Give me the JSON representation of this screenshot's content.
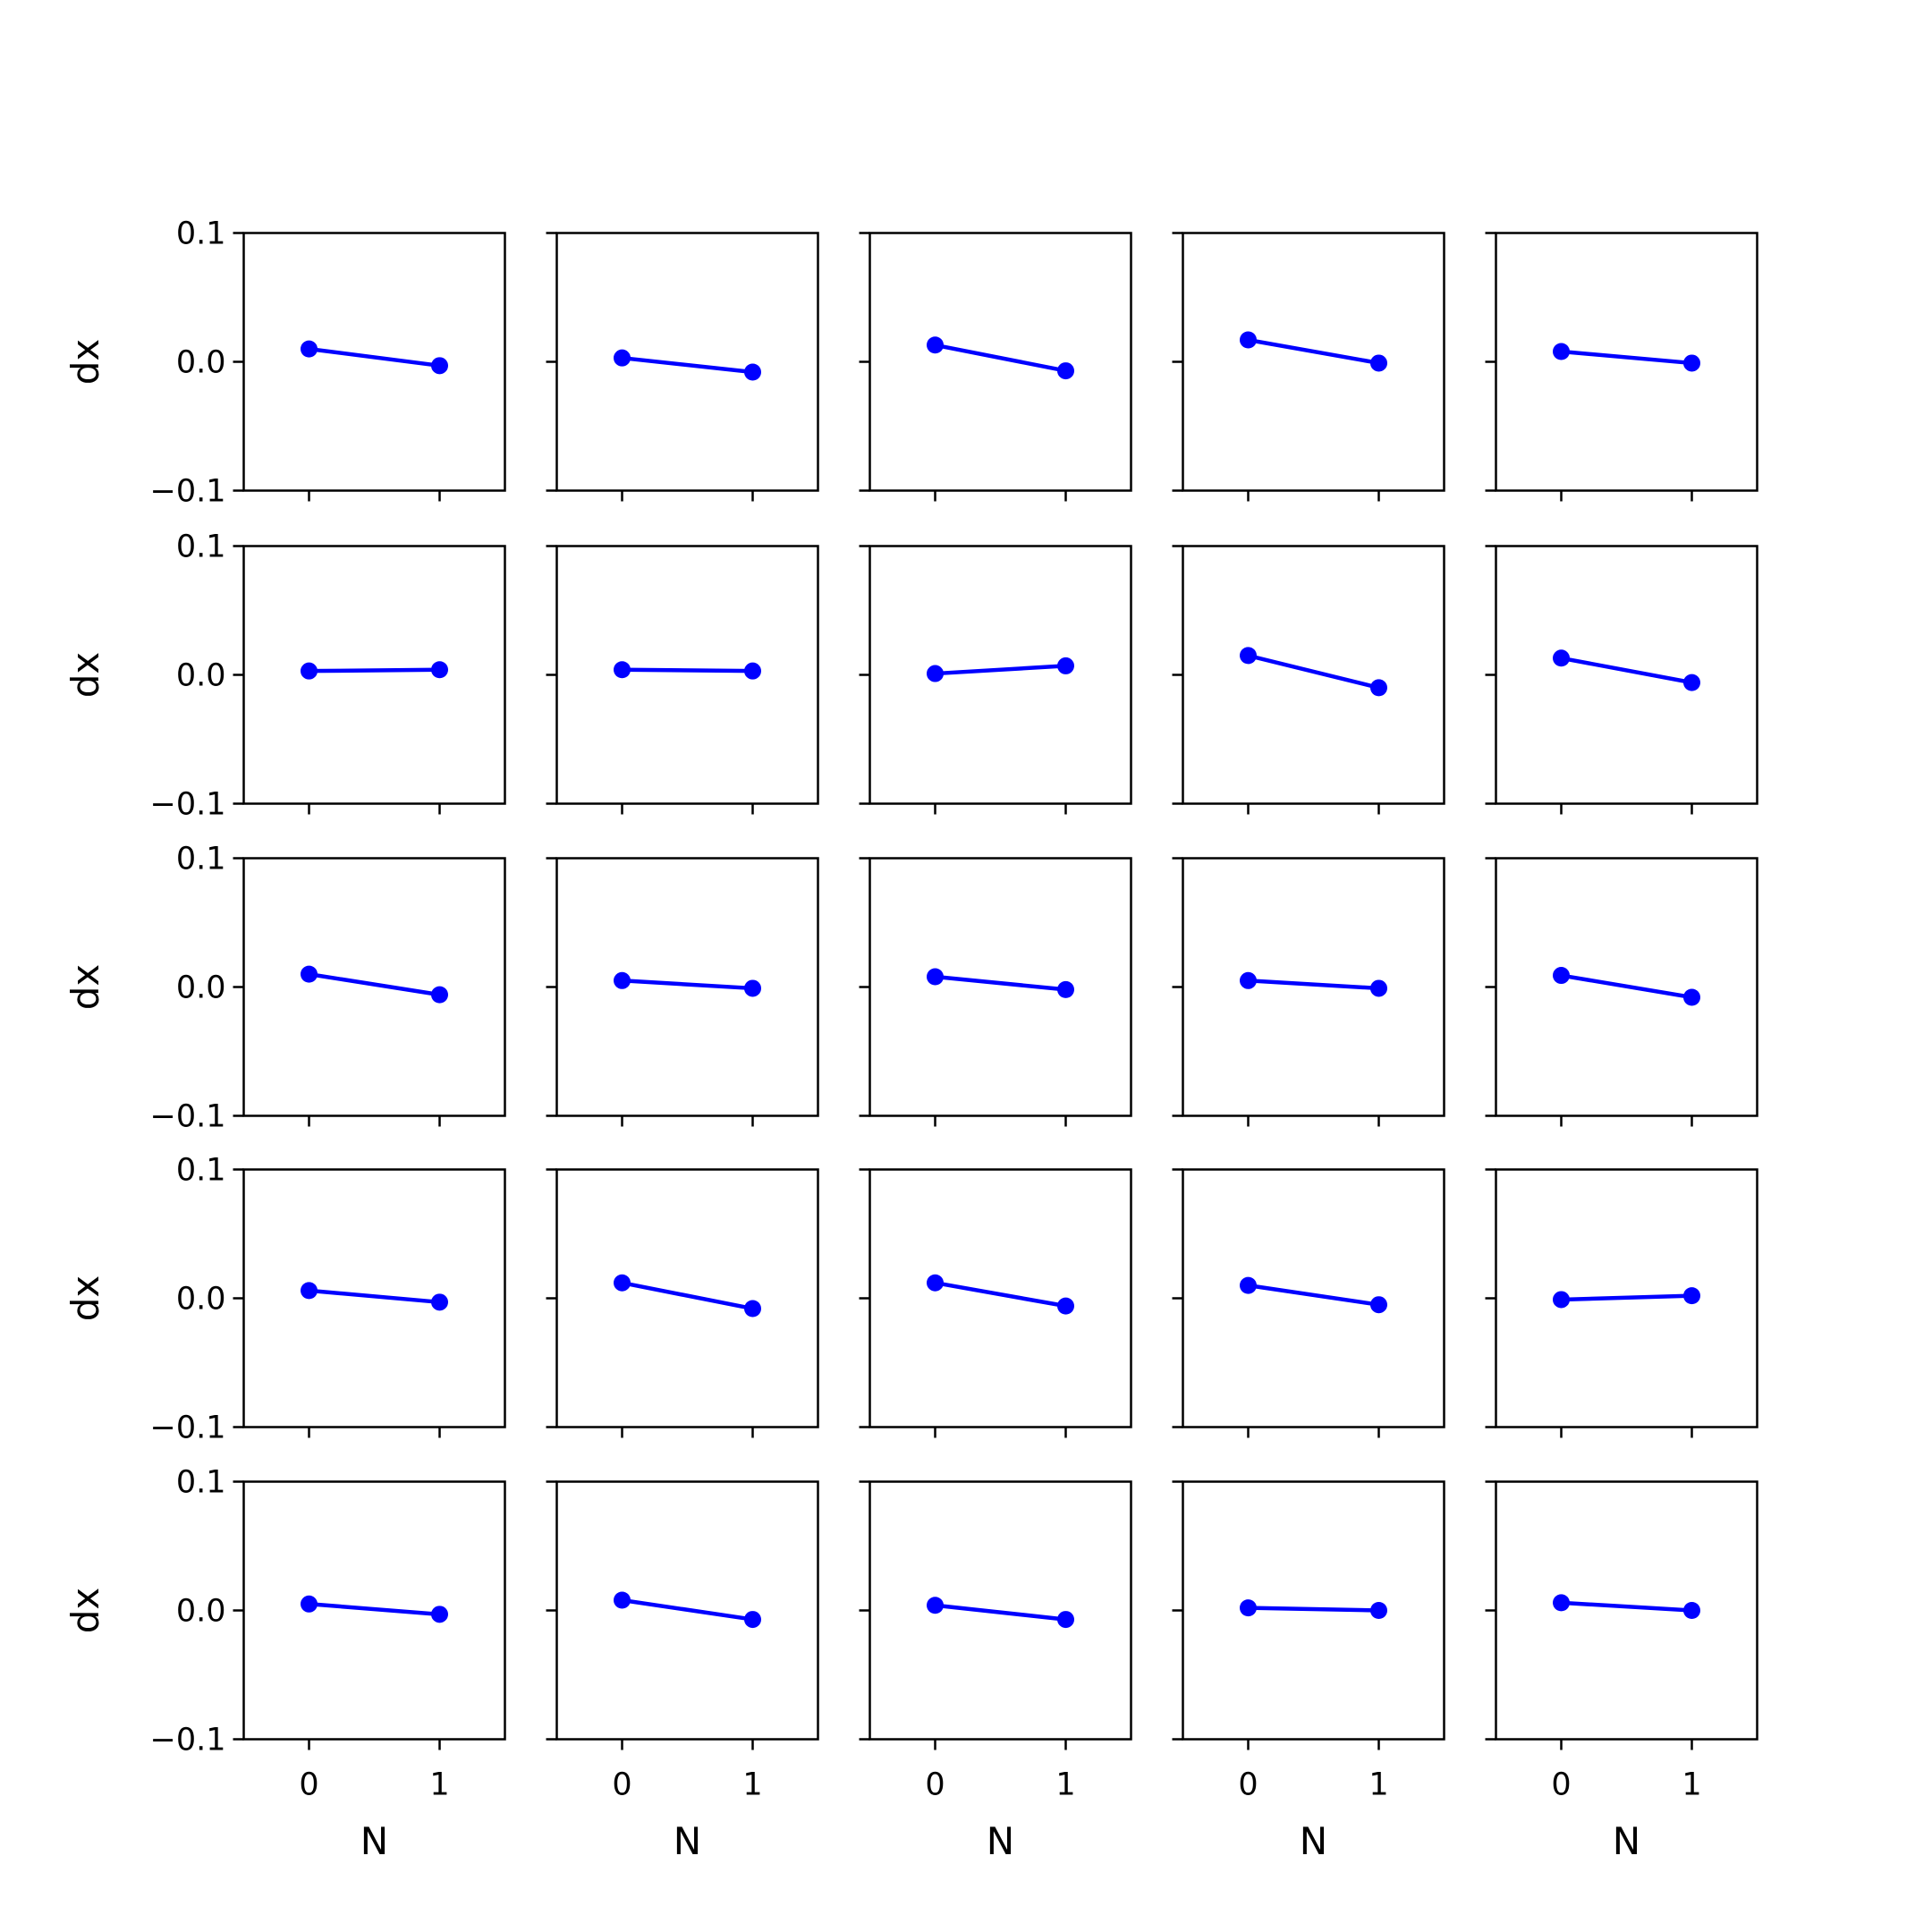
{
  "chart_data": {
    "type": "line",
    "layout": "5x5 grid of subplots",
    "xlabel": "N",
    "ylabel": "dx",
    "xticks": [
      0,
      1
    ],
    "xtick_labels": [
      "0",
      "1"
    ],
    "xlim": [
      -0.5,
      1.5
    ],
    "yticks": [
      -0.1,
      0.0,
      0.1
    ],
    "ytick_labels": [
      "−0.1",
      "0.0",
      "0.1"
    ],
    "ylim": [
      -0.1,
      0.1
    ],
    "grid": false,
    "color": "#0000ff",
    "marker": "circle",
    "x": [
      0,
      1
    ],
    "subplots": [
      {
        "row": 0,
        "col": 0,
        "y": [
          0.01,
          -0.003
        ]
      },
      {
        "row": 0,
        "col": 1,
        "y": [
          0.003,
          -0.008
        ]
      },
      {
        "row": 0,
        "col": 2,
        "y": [
          0.013,
          -0.007
        ]
      },
      {
        "row": 0,
        "col": 3,
        "y": [
          0.017,
          -0.001
        ]
      },
      {
        "row": 0,
        "col": 4,
        "y": [
          0.008,
          -0.001
        ]
      },
      {
        "row": 1,
        "col": 0,
        "y": [
          0.003,
          0.004
        ]
      },
      {
        "row": 1,
        "col": 1,
        "y": [
          0.004,
          0.003
        ]
      },
      {
        "row": 1,
        "col": 2,
        "y": [
          0.001,
          0.007
        ]
      },
      {
        "row": 1,
        "col": 3,
        "y": [
          0.015,
          -0.01
        ]
      },
      {
        "row": 1,
        "col": 4,
        "y": [
          0.013,
          -0.006
        ]
      },
      {
        "row": 2,
        "col": 0,
        "y": [
          0.01,
          -0.006
        ]
      },
      {
        "row": 2,
        "col": 1,
        "y": [
          0.005,
          -0.001
        ]
      },
      {
        "row": 2,
        "col": 2,
        "y": [
          0.008,
          -0.002
        ]
      },
      {
        "row": 2,
        "col": 3,
        "y": [
          0.005,
          -0.001
        ]
      },
      {
        "row": 2,
        "col": 4,
        "y": [
          0.009,
          -0.008
        ]
      },
      {
        "row": 3,
        "col": 0,
        "y": [
          0.006,
          -0.003
        ]
      },
      {
        "row": 3,
        "col": 1,
        "y": [
          0.012,
          -0.008
        ]
      },
      {
        "row": 3,
        "col": 2,
        "y": [
          0.012,
          -0.006
        ]
      },
      {
        "row": 3,
        "col": 3,
        "y": [
          0.01,
          -0.005
        ]
      },
      {
        "row": 3,
        "col": 4,
        "y": [
          -0.001,
          0.002
        ]
      },
      {
        "row": 4,
        "col": 0,
        "y": [
          0.005,
          -0.003
        ]
      },
      {
        "row": 4,
        "col": 1,
        "y": [
          0.008,
          -0.007
        ]
      },
      {
        "row": 4,
        "col": 2,
        "y": [
          0.004,
          -0.007
        ]
      },
      {
        "row": 4,
        "col": 3,
        "y": [
          0.002,
          0.0
        ]
      },
      {
        "row": 4,
        "col": 4,
        "y": [
          0.006,
          0.0
        ]
      }
    ]
  }
}
